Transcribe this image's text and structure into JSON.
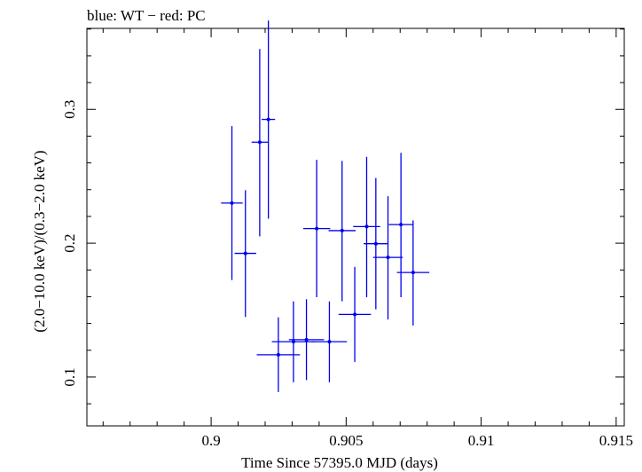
{
  "chart_data": {
    "type": "scatter",
    "title": "blue: WT − red: PC",
    "xlabel": "Time Since 57395.0 MJD (days)",
    "ylabel": "(2.0−10.0 keV)/(0.3−2.0 keV)",
    "xlim": [
      0.8954,
      0.9153
    ],
    "ylim": [
      0.0635,
      0.3605
    ],
    "x_ticks": [
      {
        "value": 0.9,
        "label": "0.9"
      },
      {
        "value": 0.905,
        "label": "0.905"
      },
      {
        "value": 0.91,
        "label": "0.91"
      },
      {
        "value": 0.915,
        "label": "0.915"
      }
    ],
    "y_ticks": [
      {
        "value": 0.1,
        "label": "0.1"
      },
      {
        "value": 0.2,
        "label": "0.2"
      },
      {
        "value": 0.3,
        "label": "0.3"
      }
    ],
    "series": [
      {
        "name": "WT",
        "color": "#0000ee",
        "points": [
          {
            "x": 0.90077,
            "xerr": 0.0004,
            "y": 0.23,
            "ylo": 0.1725,
            "yhi": 0.2875
          },
          {
            "x": 0.90127,
            "xerr": 0.0004,
            "y": 0.1924,
            "ylo": 0.1449,
            "yhi": 0.2396
          },
          {
            "x": 0.9018,
            "xerr": 0.0003,
            "y": 0.2755,
            "ylo": 0.2051,
            "yhi": 0.3451
          },
          {
            "x": 0.90212,
            "xerr": 0.00025,
            "y": 0.2925,
            "ylo": 0.2183,
            "yhi": 0.3664
          },
          {
            "x": 0.90249,
            "xerr": 0.0008,
            "y": 0.1166,
            "ylo": 0.0888,
            "yhi": 0.1446
          },
          {
            "x": 0.90305,
            "xerr": 0.0008,
            "y": 0.1264,
            "ylo": 0.0961,
            "yhi": 0.1565
          },
          {
            "x": 0.90353,
            "xerr": 0.00065,
            "y": 0.1279,
            "ylo": 0.0977,
            "yhi": 0.1581
          },
          {
            "x": 0.90391,
            "xerr": 0.0005,
            "y": 0.2109,
            "ylo": 0.1596,
            "yhi": 0.2623
          },
          {
            "x": 0.90438,
            "xerr": 0.00065,
            "y": 0.1264,
            "ylo": 0.0961,
            "yhi": 0.1565
          },
          {
            "x": 0.90485,
            "xerr": 0.0005,
            "y": 0.2094,
            "ylo": 0.1566,
            "yhi": 0.2615
          },
          {
            "x": 0.90532,
            "xerr": 0.0006,
            "y": 0.1468,
            "ylo": 0.1113,
            "yhi": 0.1823
          },
          {
            "x": 0.90576,
            "xerr": 0.0005,
            "y": 0.2124,
            "ylo": 0.1596,
            "yhi": 0.2645
          },
          {
            "x": 0.9061,
            "xerr": 0.00045,
            "y": 0.1996,
            "ylo": 0.1506,
            "yhi": 0.2487
          },
          {
            "x": 0.90655,
            "xerr": 0.00055,
            "y": 0.1894,
            "ylo": 0.143,
            "yhi": 0.2351
          },
          {
            "x": 0.90703,
            "xerr": 0.00045,
            "y": 0.2139,
            "ylo": 0.1596,
            "yhi": 0.2675
          },
          {
            "x": 0.90748,
            "xerr": 0.0006,
            "y": 0.1781,
            "ylo": 0.1385,
            "yhi": 0.217
          }
        ]
      }
    ]
  }
}
